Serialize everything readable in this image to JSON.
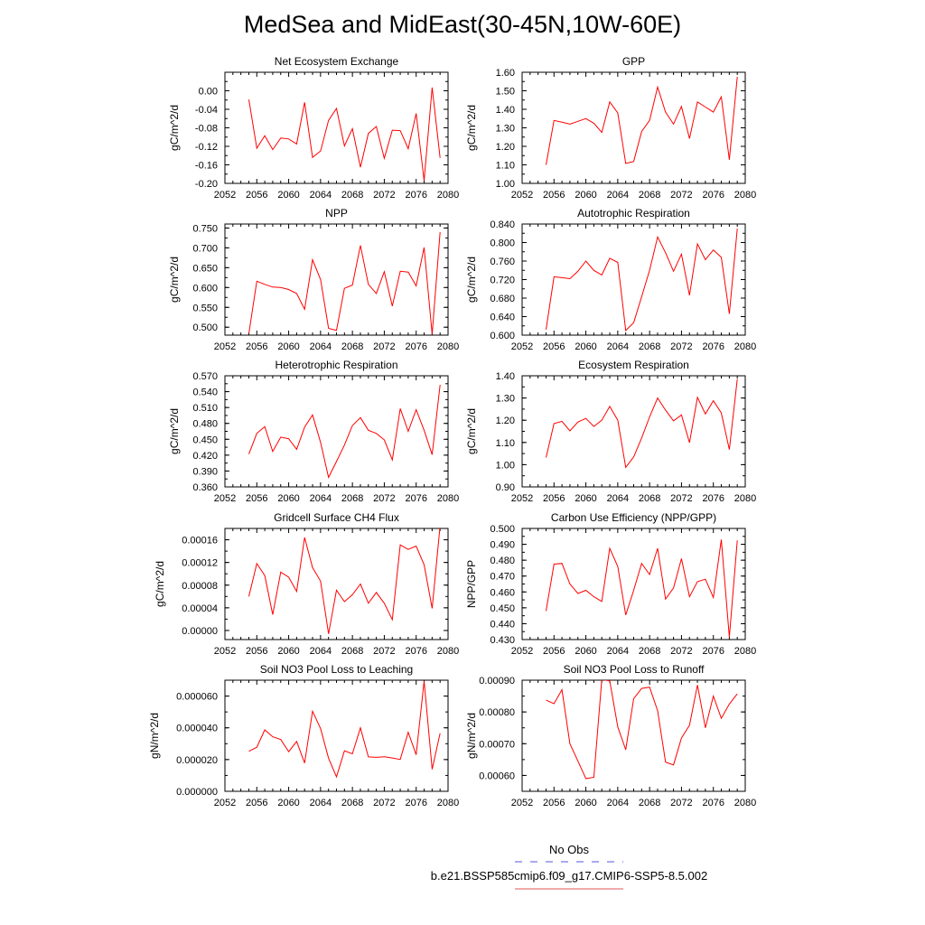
{
  "title": "MedSea and MidEast(30-45N,10W-60E)",
  "colors": {
    "line": "#ff0000",
    "axis": "#000000",
    "obs": "#5555dd",
    "case": "#e05555"
  },
  "legend": {
    "obs_label": "No Obs",
    "case_label": "b.e21.BSSP585cmip6.f09_g17.CMIP6-SSP5-8.5.002"
  },
  "chart_data": [
    {
      "type": "line",
      "title": "Net Ecosystem Exchange",
      "ylabel": "gC/m^2/d",
      "xlim": [
        2052,
        2080
      ],
      "xticks": [
        2052,
        2056,
        2060,
        2064,
        2068,
        2072,
        2076,
        2080
      ],
      "ylim": [
        -0.2,
        0.04
      ],
      "yticks": [
        -0.2,
        -0.16,
        -0.12,
        -0.08,
        -0.04,
        0.0
      ],
      "yticklabels": [
        "-0.20",
        "-0.16",
        "-0.12",
        "-0.08",
        "-0.04",
        "0.00"
      ],
      "x": [
        2055,
        2056,
        2057,
        2058,
        2059,
        2060,
        2061,
        2062,
        2063,
        2064,
        2065,
        2066,
        2067,
        2068,
        2069,
        2070,
        2071,
        2072,
        2073,
        2074,
        2075,
        2076,
        2077,
        2078,
        2079
      ],
      "y": [
        -0.019,
        -0.124,
        -0.097,
        -0.127,
        -0.102,
        -0.104,
        -0.115,
        -0.025,
        -0.144,
        -0.13,
        -0.064,
        -0.038,
        -0.119,
        -0.082,
        -0.165,
        -0.092,
        -0.077,
        -0.146,
        -0.085,
        -0.086,
        -0.125,
        -0.049,
        -0.194,
        0.007,
        -0.145
      ]
    },
    {
      "type": "line",
      "title": "GPP",
      "ylabel": "gC/m^2/d",
      "xlim": [
        2052,
        2080
      ],
      "xticks": [
        2052,
        2056,
        2060,
        2064,
        2068,
        2072,
        2076,
        2080
      ],
      "ylim": [
        1.0,
        1.6
      ],
      "yticks": [
        1.0,
        1.1,
        1.2,
        1.3,
        1.4,
        1.5,
        1.6
      ],
      "yticklabels": [
        "1.00",
        "1.10",
        "1.20",
        "1.30",
        "1.40",
        "1.50",
        "1.60"
      ],
      "x": [
        2055,
        2056,
        2057,
        2058,
        2059,
        2060,
        2061,
        2062,
        2063,
        2064,
        2065,
        2066,
        2067,
        2068,
        2069,
        2070,
        2071,
        2072,
        2073,
        2074,
        2075,
        2076,
        2077,
        2078,
        2079
      ],
      "y": [
        1.1,
        1.34,
        1.33,
        1.32,
        1.335,
        1.35,
        1.325,
        1.275,
        1.44,
        1.38,
        1.108,
        1.118,
        1.28,
        1.34,
        1.52,
        1.385,
        1.32,
        1.415,
        1.242,
        1.44,
        1.412,
        1.385,
        1.468,
        1.128,
        1.575
      ]
    },
    {
      "type": "line",
      "title": "NPP",
      "ylabel": "gC/m^2/d",
      "xlim": [
        2052,
        2080
      ],
      "xticks": [
        2052,
        2056,
        2060,
        2064,
        2068,
        2072,
        2076,
        2080
      ],
      "ylim": [
        0.48,
        0.76
      ],
      "yticks": [
        0.5,
        0.55,
        0.6,
        0.65,
        0.7,
        0.75
      ],
      "yticklabels": [
        "0.500",
        "0.550",
        "0.600",
        "0.650",
        "0.700",
        "0.750"
      ],
      "x": [
        2055,
        2056,
        2057,
        2058,
        2059,
        2060,
        2061,
        2062,
        2063,
        2064,
        2065,
        2066,
        2067,
        2068,
        2069,
        2070,
        2071,
        2072,
        2073,
        2074,
        2075,
        2076,
        2077,
        2078,
        2079
      ],
      "y": [
        0.484,
        0.616,
        0.608,
        0.601,
        0.6,
        0.595,
        0.585,
        0.545,
        0.67,
        0.62,
        0.497,
        0.492,
        0.598,
        0.606,
        0.706,
        0.608,
        0.585,
        0.64,
        0.553,
        0.641,
        0.639,
        0.604,
        0.701,
        0.482,
        0.74
      ]
    },
    {
      "type": "line",
      "title": "Autotrophic Respiration",
      "ylabel": "gC/m^2/d",
      "xlim": [
        2052,
        2080
      ],
      "xticks": [
        2052,
        2056,
        2060,
        2064,
        2068,
        2072,
        2076,
        2080
      ],
      "ylim": [
        0.6,
        0.84
      ],
      "yticks": [
        0.6,
        0.64,
        0.68,
        0.72,
        0.76,
        0.8,
        0.84
      ],
      "yticklabels": [
        "0.600",
        "0.640",
        "0.680",
        "0.720",
        "0.760",
        "0.800",
        "0.840"
      ],
      "x": [
        2055,
        2056,
        2057,
        2058,
        2059,
        2060,
        2061,
        2062,
        2063,
        2064,
        2065,
        2066,
        2067,
        2068,
        2069,
        2070,
        2071,
        2072,
        2073,
        2074,
        2075,
        2076,
        2077,
        2078,
        2079
      ],
      "y": [
        0.612,
        0.726,
        0.724,
        0.722,
        0.738,
        0.76,
        0.74,
        0.73,
        0.766,
        0.757,
        0.61,
        0.627,
        0.683,
        0.74,
        0.812,
        0.778,
        0.738,
        0.775,
        0.686,
        0.797,
        0.763,
        0.784,
        0.768,
        0.646,
        0.83
      ]
    },
    {
      "type": "line",
      "title": "Heterotrophic Respiration",
      "ylabel": "gC/m^2/d",
      "xlim": [
        2052,
        2080
      ],
      "xticks": [
        2052,
        2056,
        2060,
        2064,
        2068,
        2072,
        2076,
        2080
      ],
      "ylim": [
        0.36,
        0.57
      ],
      "yticks": [
        0.36,
        0.39,
        0.42,
        0.45,
        0.48,
        0.51,
        0.54,
        0.57
      ],
      "yticklabels": [
        "0.360",
        "0.390",
        "0.420",
        "0.450",
        "0.480",
        "0.510",
        "0.540",
        "0.570"
      ],
      "x": [
        2055,
        2056,
        2057,
        2058,
        2059,
        2060,
        2061,
        2062,
        2063,
        2064,
        2065,
        2066,
        2067,
        2068,
        2069,
        2070,
        2071,
        2072,
        2073,
        2074,
        2075,
        2076,
        2077,
        2078,
        2079
      ],
      "y": [
        0.422,
        0.461,
        0.474,
        0.427,
        0.454,
        0.451,
        0.431,
        0.473,
        0.496,
        0.444,
        0.378,
        0.408,
        0.439,
        0.476,
        0.491,
        0.467,
        0.461,
        0.449,
        0.411,
        0.508,
        0.465,
        0.506,
        0.467,
        0.421,
        0.553
      ]
    },
    {
      "type": "line",
      "title": "Ecosystem Respiration",
      "ylabel": "gC/m^2/d",
      "xlim": [
        2052,
        2080
      ],
      "xticks": [
        2052,
        2056,
        2060,
        2064,
        2068,
        2072,
        2076,
        2080
      ],
      "ylim": [
        0.9,
        1.4
      ],
      "yticks": [
        0.9,
        1.0,
        1.1,
        1.2,
        1.3,
        1.4
      ],
      "yticklabels": [
        "0.90",
        "1.00",
        "1.10",
        "1.20",
        "1.30",
        "1.40"
      ],
      "x": [
        2055,
        2056,
        2057,
        2058,
        2059,
        2060,
        2061,
        2062,
        2063,
        2064,
        2065,
        2066,
        2067,
        2068,
        2069,
        2070,
        2071,
        2072,
        2073,
        2074,
        2075,
        2076,
        2077,
        2078,
        2079
      ],
      "y": [
        1.032,
        1.185,
        1.195,
        1.152,
        1.192,
        1.208,
        1.172,
        1.2,
        1.262,
        1.2,
        0.988,
        1.035,
        1.12,
        1.215,
        1.3,
        1.245,
        1.197,
        1.224,
        1.099,
        1.303,
        1.228,
        1.288,
        1.233,
        1.068,
        1.385
      ]
    },
    {
      "type": "line",
      "title": "Gridcell Surface CH4 Flux",
      "ylabel": "gC/m^2/d",
      "xlim": [
        2052,
        2080
      ],
      "xticks": [
        2052,
        2056,
        2060,
        2064,
        2068,
        2072,
        2076,
        2080
      ],
      "ylim": [
        -1.6e-05,
        0.00018
      ],
      "yticks": [
        0.0,
        4e-05,
        8e-05,
        0.00012,
        0.00016
      ],
      "yticklabels": [
        "0.00000",
        "0.00004",
        "0.00008",
        "0.00012",
        "0.00016"
      ],
      "x": [
        2055,
        2056,
        2057,
        2058,
        2059,
        2060,
        2061,
        2062,
        2063,
        2064,
        2065,
        2066,
        2067,
        2068,
        2069,
        2070,
        2071,
        2072,
        2073,
        2074,
        2075,
        2076,
        2077,
        2078,
        2079
      ],
      "y": [
        6e-05,
        0.000118,
        9.7e-05,
        2.8e-05,
        0.000103,
        9.4e-05,
        6.9e-05,
        0.000164,
        0.000111,
        8.7e-05,
        -6e-06,
        7.1e-05,
        5.1e-05,
        6.3e-05,
        8.2e-05,
        4.8e-05,
        6.7e-05,
        4.8e-05,
        1.9e-05,
        0.000151,
        0.000143,
        0.000149,
        0.000116,
        3.9e-05,
        0.000185
      ]
    },
    {
      "type": "line",
      "title": "Carbon Use Efficiency (NPP/GPP)",
      "ylabel": "NPP/GPP",
      "xlim": [
        2052,
        2080
      ],
      "xticks": [
        2052,
        2056,
        2060,
        2064,
        2068,
        2072,
        2076,
        2080
      ],
      "ylim": [
        0.43,
        0.5
      ],
      "yticks": [
        0.43,
        0.44,
        0.45,
        0.46,
        0.47,
        0.48,
        0.49,
        0.5
      ],
      "yticklabels": [
        "0.430",
        "0.440",
        "0.450",
        "0.460",
        "0.470",
        "0.480",
        "0.490",
        "0.500"
      ],
      "x": [
        2055,
        2056,
        2057,
        2058,
        2059,
        2060,
        2061,
        2062,
        2063,
        2064,
        2065,
        2066,
        2067,
        2068,
        2069,
        2070,
        2071,
        2072,
        2073,
        2074,
        2075,
        2076,
        2077,
        2078,
        2079
      ],
      "y": [
        0.448,
        0.4775,
        0.478,
        0.465,
        0.459,
        0.461,
        0.457,
        0.454,
        0.4875,
        0.476,
        0.4455,
        0.461,
        0.478,
        0.471,
        0.4875,
        0.4555,
        0.4625,
        0.481,
        0.457,
        0.4665,
        0.468,
        0.4565,
        0.493,
        0.4315,
        0.4925
      ]
    },
    {
      "type": "line",
      "title": "Soil NO3 Pool Loss to Leaching",
      "ylabel": "gN/m^2/d",
      "xlim": [
        2052,
        2080
      ],
      "xticks": [
        2052,
        2056,
        2060,
        2064,
        2068,
        2072,
        2076,
        2080
      ],
      "ylim": [
        0.0,
        7e-05
      ],
      "yticks": [
        0.0,
        2e-05,
        4e-05,
        6e-05
      ],
      "yticklabels": [
        "0.000000",
        "0.000020",
        "0.000040",
        "0.000060"
      ],
      "x": [
        2055,
        2056,
        2057,
        2058,
        2059,
        2060,
        2061,
        2062,
        2063,
        2064,
        2065,
        2066,
        2067,
        2068,
        2069,
        2070,
        2071,
        2072,
        2073,
        2074,
        2075,
        2076,
        2077,
        2078,
        2079
      ],
      "y": [
        2.52e-05,
        2.78e-05,
        3.87e-05,
        3.44e-05,
        3.26e-05,
        2.5e-05,
        3.14e-05,
        1.78e-05,
        5.05e-05,
        3.95e-05,
        2.09e-05,
        9.1e-06,
        2.55e-05,
        2.36e-05,
        4e-05,
        2.17e-05,
        2.14e-05,
        2.18e-05,
        2.1e-05,
        2.01e-05,
        3.72e-05,
        2.3e-05,
        6.95e-05,
        1.39e-05,
        3.66e-05
      ]
    },
    {
      "type": "line",
      "title": "Soil NO3 Pool Loss to Runoff",
      "ylabel": "gN/m^2/d",
      "xlim": [
        2052,
        2080
      ],
      "xticks": [
        2052,
        2056,
        2060,
        2064,
        2068,
        2072,
        2076,
        2080
      ],
      "ylim": [
        0.00055,
        0.0009
      ],
      "yticks": [
        0.0006,
        0.0007,
        0.0008,
        0.0009
      ],
      "yticklabels": [
        "0.00060",
        "0.00070",
        "0.00080",
        "0.00090"
      ],
      "x": [
        2055,
        2056,
        2057,
        2058,
        2059,
        2060,
        2061,
        2062,
        2063,
        2064,
        2065,
        2066,
        2067,
        2068,
        2069,
        2070,
        2071,
        2072,
        2073,
        2074,
        2075,
        2076,
        2077,
        2078,
        2079
      ],
      "y": [
        0.000837,
        0.000826,
        0.00087,
        0.0007,
        0.000645,
        0.00059,
        0.000594,
        0.000902,
        0.000898,
        0.000753,
        0.000681,
        0.000842,
        0.000874,
        0.000878,
        0.000804,
        0.000642,
        0.000633,
        0.000718,
        0.000758,
        0.000885,
        0.00075,
        0.00085,
        0.00078,
        0.000825,
        0.000857
      ]
    }
  ]
}
